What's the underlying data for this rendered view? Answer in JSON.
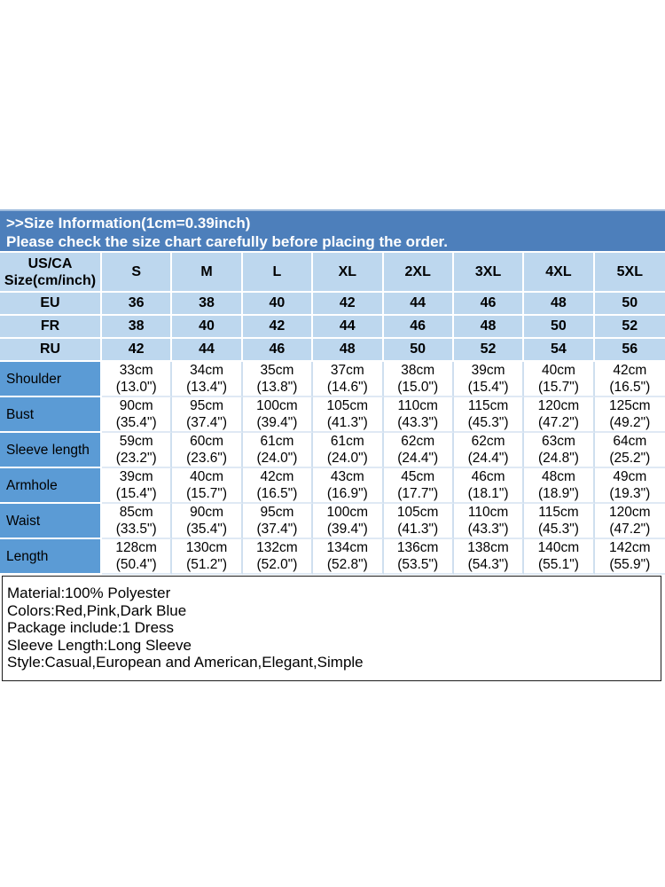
{
  "banner": {
    "title": ">>Size Information(1cm=0.39inch)",
    "subtitle": "Please check the size chart carefully before placing the order."
  },
  "table": {
    "columns": [
      "US/CA\nSize(cm/inch)",
      "S",
      "M",
      "L",
      "XL",
      "2XL",
      "3XL",
      "4XL",
      "5XL"
    ],
    "size_rows": [
      {
        "label": "EU",
        "values": [
          "36",
          "38",
          "40",
          "42",
          "44",
          "46",
          "48",
          "50"
        ]
      },
      {
        "label": "FR",
        "values": [
          "38",
          "40",
          "42",
          "44",
          "46",
          "48",
          "50",
          "52"
        ]
      },
      {
        "label": "RU",
        "values": [
          "42",
          "44",
          "46",
          "48",
          "50",
          "52",
          "54",
          "56"
        ]
      }
    ],
    "measure_rows": [
      {
        "label": "Shoulder",
        "values": [
          "33cm\n(13.0\")",
          "34cm\n(13.4\")",
          "35cm\n(13.8\")",
          "37cm\n(14.6\")",
          "38cm\n(15.0\")",
          "39cm\n(15.4\")",
          "40cm\n(15.7\")",
          "42cm\n(16.5\")"
        ]
      },
      {
        "label": "Bust",
        "values": [
          "90cm\n(35.4\")",
          "95cm\n(37.4\")",
          "100cm\n(39.4\")",
          "105cm\n(41.3\")",
          "110cm\n(43.3\")",
          "115cm\n(45.3\")",
          "120cm\n(47.2\")",
          "125cm\n(49.2\")"
        ]
      },
      {
        "label": "Sleeve length",
        "values": [
          "59cm\n(23.2\")",
          "60cm\n(23.6\")",
          "61cm\n(24.0\")",
          "61cm\n(24.0\")",
          "62cm\n(24.4\")",
          "62cm\n(24.4\")",
          "63cm\n(24.8\")",
          "64cm\n(25.2\")"
        ]
      },
      {
        "label": "Armhole",
        "values": [
          "39cm\n(15.4\")",
          "40cm\n(15.7\")",
          "42cm\n(16.5\")",
          "43cm\n(16.9\")",
          "45cm\n(17.7\")",
          "46cm\n(18.1\")",
          "48cm\n(18.9\")",
          "49cm\n(19.3\")"
        ]
      },
      {
        "label": "Waist",
        "values": [
          "85cm\n(33.5\")",
          "90cm\n(35.4\")",
          "95cm\n(37.4\")",
          "100cm\n(39.4\")",
          "105cm\n(41.3\")",
          "110cm\n(43.3\")",
          "115cm\n(45.3\")",
          "120cm\n(47.2\")"
        ]
      },
      {
        "label": "Length",
        "values": [
          "128cm\n(50.4\")",
          "130cm\n(51.2\")",
          "132cm\n(52.0\")",
          "134cm\n(52.8\")",
          "136cm\n(53.5\")",
          "138cm\n(54.3\")",
          "140cm\n(55.1\")",
          "142cm\n(55.9\")"
        ]
      }
    ]
  },
  "details": {
    "lines": [
      "Material:100% Polyester",
      "Colors:Red,Pink,Dark Blue",
      "Package include:1 Dress",
      "Sleeve Length:Long Sleeve",
      "Style:Casual,European and American,Elegant,Simple"
    ]
  },
  "colors": {
    "banner_blue": "#4d7fbb",
    "banner_top_edge": "#9cbadc",
    "cell_light_blue": "#bdd7ee",
    "label_medium_blue": "#5b9bd5",
    "grid_white": "#ffffff",
    "grid_light_vertical": "#cfdfef",
    "grid_light_horizontal": "#dfe9f4",
    "text_dark": "#000000",
    "banner_text": "#ffffff",
    "box_border": "#1c1c1c"
  }
}
